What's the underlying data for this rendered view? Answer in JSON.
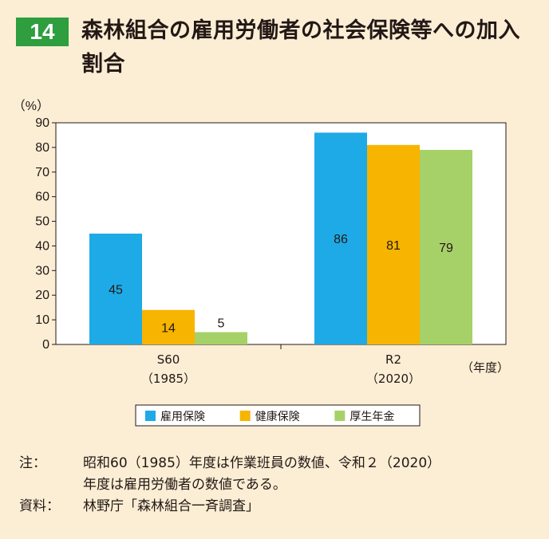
{
  "header": {
    "figure_number": "14",
    "title": "森林組合の雇用労働者の社会保険等への加入割合"
  },
  "chart_data": {
    "type": "bar",
    "y_unit": "（%）",
    "x_unit": "（年度）",
    "ylim": [
      0,
      90
    ],
    "yticks": [
      0,
      10,
      20,
      30,
      40,
      50,
      60,
      70,
      80,
      90
    ],
    "categories": [
      {
        "label": "S60",
        "sublabel": "（1985）"
      },
      {
        "label": "R2",
        "sublabel": "（2020）"
      }
    ],
    "series": [
      {
        "name": "雇用保険",
        "color": "#1eaae6",
        "values": [
          45,
          86
        ]
      },
      {
        "name": "健康保険",
        "color": "#f7b400",
        "values": [
          14,
          81
        ]
      },
      {
        "name": "厚生年金",
        "color": "#a6d169",
        "values": [
          5,
          79
        ]
      }
    ],
    "legend_position": "bottom",
    "grid": false
  },
  "notes": {
    "note_label": "注：",
    "note_line1": "昭和60（1985）年度は作業班員の数値、令和２（2020）",
    "note_line2": "年度は雇用労働者の数値である。",
    "source_label": "資料：",
    "source_text": "林野庁「森林組合一斉調査」"
  }
}
